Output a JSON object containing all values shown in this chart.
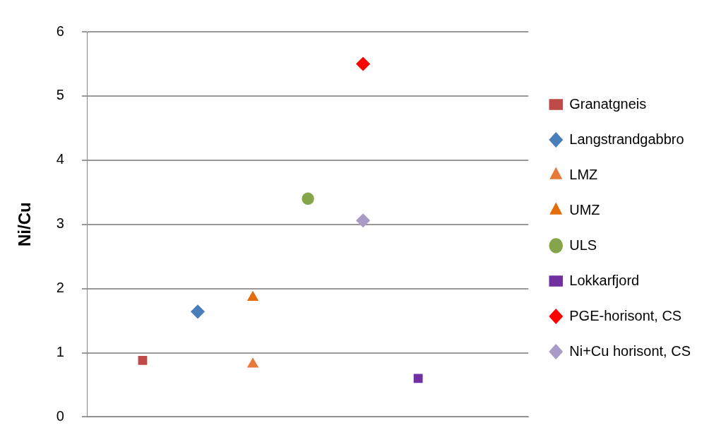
{
  "chart_data": {
    "type": "scatter",
    "ylabel": "Ni/Cu",
    "categories": [
      null,
      null,
      null,
      null,
      null,
      null,
      null,
      null,
      null
    ],
    "ylim": [
      0,
      6
    ],
    "yticks": [
      0,
      1,
      2,
      3,
      4,
      5,
      6
    ],
    "grid": "y",
    "legend": "right",
    "series": [
      {
        "name": "Granatgneis",
        "color": "#be4b48",
        "marker": "square",
        "values": [
          null,
          0.88,
          null,
          null,
          null,
          null,
          null,
          null,
          null
        ]
      },
      {
        "name": "Langstrandgabbro",
        "color": "#4a7ebb",
        "marker": "diamond",
        "values": [
          null,
          null,
          1.64,
          null,
          null,
          null,
          null,
          null,
          null
        ]
      },
      {
        "name": "LMZ",
        "color": "#e8793a",
        "marker": "triangle",
        "values": [
          null,
          null,
          null,
          0.82,
          null,
          null,
          null,
          null,
          null
        ]
      },
      {
        "name": "UMZ",
        "color": "#e46c0a",
        "marker": "triangle",
        "values": [
          null,
          null,
          null,
          1.86,
          null,
          null,
          null,
          null,
          null
        ]
      },
      {
        "name": "ULS",
        "color": "#86a44a",
        "marker": "circle",
        "values": [
          null,
          null,
          null,
          null,
          3.4,
          null,
          null,
          null,
          null
        ]
      },
      {
        "name": "Lokkarfjord",
        "color": "#7030a0",
        "marker": "square",
        "values": [
          null,
          null,
          null,
          null,
          null,
          null,
          0.6,
          null,
          null
        ]
      },
      {
        "name": "PGE-horisont, CS",
        "color": "#ff0000",
        "marker": "diamond",
        "values": [
          null,
          null,
          null,
          null,
          null,
          5.5,
          null,
          null,
          null
        ]
      },
      {
        "name": "Ni+Cu horisont, CS",
        "color": "#a99bc8",
        "marker": "diamond",
        "values": [
          null,
          null,
          null,
          null,
          null,
          3.06,
          null,
          null,
          null
        ]
      }
    ]
  }
}
